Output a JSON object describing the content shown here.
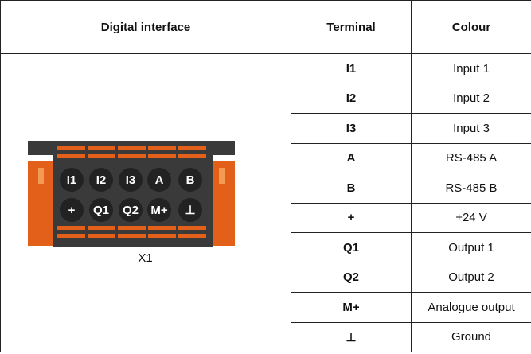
{
  "table": {
    "headers": [
      "Digital interface",
      "Terminal",
      "Colour"
    ],
    "rows": [
      [
        "I1",
        "Input 1"
      ],
      [
        "I2",
        "Input 2"
      ],
      [
        "I3",
        "Input 3"
      ],
      [
        "A",
        "RS-485 A"
      ],
      [
        "B",
        "RS-485 B"
      ],
      [
        "+",
        "+24 V"
      ],
      [
        "Q1",
        "Output 1"
      ],
      [
        "Q2",
        "Output 2"
      ],
      [
        "M+",
        "Analogue output"
      ],
      [
        "⊥",
        "Ground"
      ]
    ],
    "connector": {
      "top_row": [
        "I1",
        "I2",
        "I3",
        "A",
        "B"
      ],
      "bottom_row": [
        "+",
        "Q1",
        "Q2",
        "M+",
        "⊥"
      ]
    },
    "caption": "X1"
  }
}
